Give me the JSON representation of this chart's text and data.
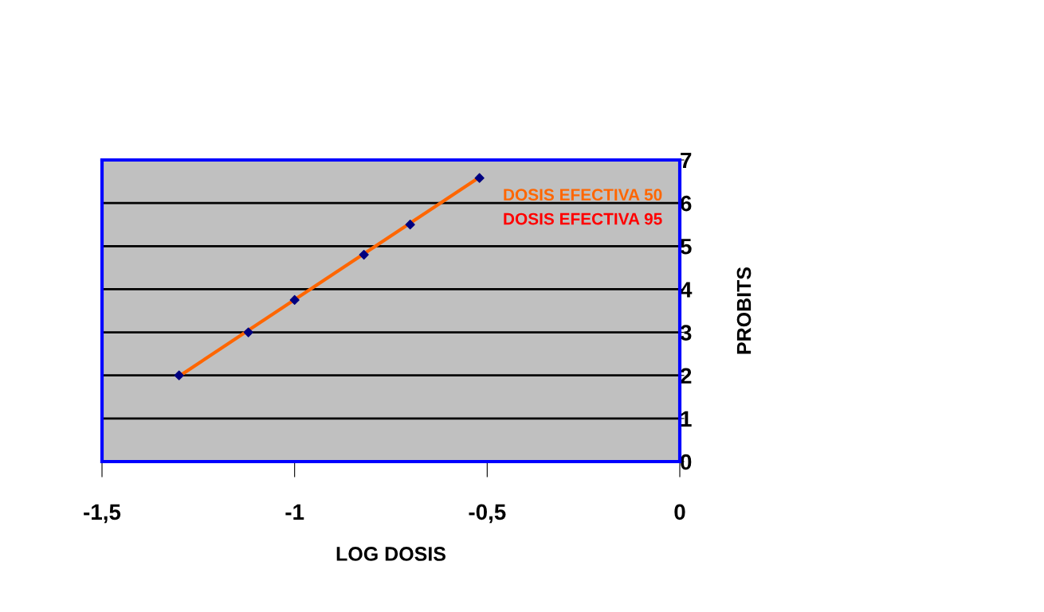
{
  "chart_data": {
    "type": "scatter",
    "xlabel": "LOG DOSIS",
    "ylabel": "PROBITS",
    "series": [
      {
        "color": "#000080",
        "marker": "diamond",
        "x": [
          -1.3,
          -1.12,
          -1.0,
          -0.82,
          -0.7,
          -0.52
        ],
        "values": [
          2.0,
          3.0,
          3.75,
          4.8,
          5.5,
          6.58
        ]
      },
      {
        "type": "line",
        "color": "#ff6600",
        "marker": "none",
        "x": [
          -1.3,
          -0.52
        ],
        "values": [
          1.98,
          6.6
        ]
      }
    ],
    "annotations": [
      "DOSIS EFECTIVA 50",
      "DOSIS EFECTIVA 95"
    ],
    "xlim": [
      -1.5,
      0
    ],
    "ylim": [
      0,
      7
    ],
    "xticks": [
      {
        "value": -1.5,
        "label": "-1,5"
      },
      -1,
      {
        "value": -0.5,
        "label": "-0,5"
      },
      0
    ],
    "yticks": [
      0,
      1,
      2,
      3,
      4,
      5,
      6,
      7
    ],
    "grid": "y",
    "legend": false
  }
}
